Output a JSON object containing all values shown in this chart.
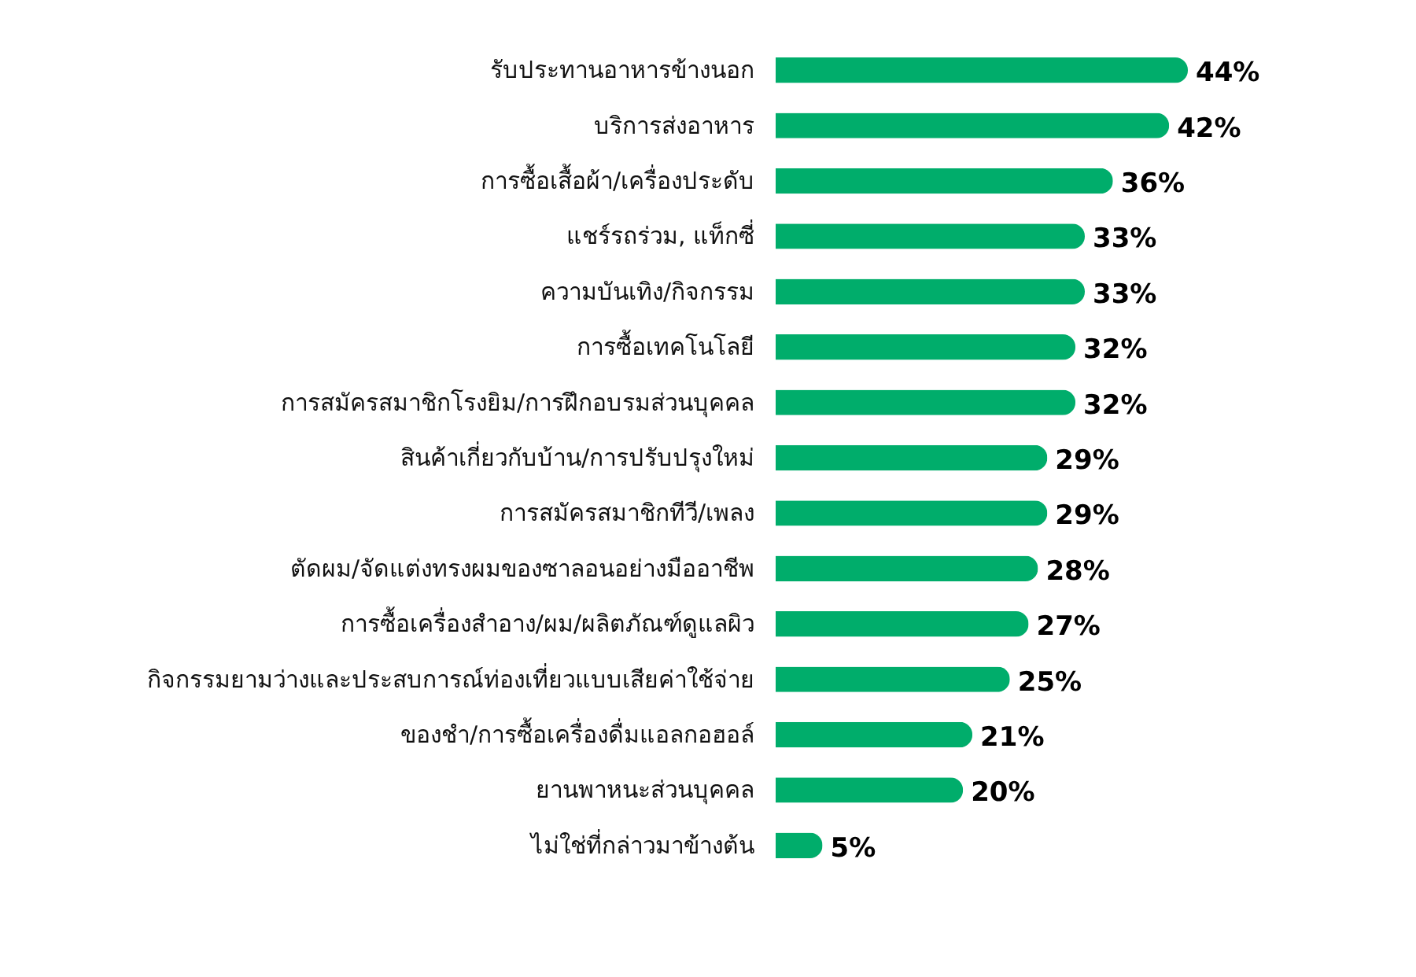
{
  "chart_data": {
    "type": "bar",
    "orientation": "horizontal",
    "color": "#00ad6b",
    "categories": [
      "รับประทานอาหารข้างนอก",
      "บริการส่งอาหาร",
      "การซื้อเสื้อผ้า/เครื่องประดับ",
      "แชร์รถร่วม, แท็กซี่",
      "ความบันเทิง/กิจกรรม",
      "การซื้อเทคโนโลยี",
      "การสมัครสมาชิกโรงยิม/การฝึกอบรมส่วนบุคคล",
      "สินค้าเกี่ยวกับบ้าน/การปรับปรุงใหม่",
      "การสมัครสมาชิกทีวี/เพลง",
      "ตัดผม/จัดแต่งทรงผมของซาลอนอย่างมืออาชีพ",
      "การซื้อเครื่องสำอาง/ผม/ผลิตภัณฑ์ดูแลผิว",
      "กิจกรรมยามว่างและประสบการณ์ท่องเที่ยวแบบเสียค่าใช้จ่าย",
      "ของชำ/การซื้อเครื่องดื่มแอลกอฮอล์",
      "ยานพาหนะส่วนบุคคล",
      "ไม่ใช่ที่กล่าวมาข้างต้น"
    ],
    "values": [
      44,
      42,
      36,
      33,
      33,
      32,
      32,
      29,
      29,
      28,
      27,
      25,
      21,
      20,
      5
    ],
    "value_labels": [
      "44%",
      "42%",
      "36%",
      "33%",
      "33%",
      "32%",
      "32%",
      "29%",
      "29%",
      "28%",
      "27%",
      "25%",
      "21%",
      "20%",
      "5%"
    ]
  }
}
